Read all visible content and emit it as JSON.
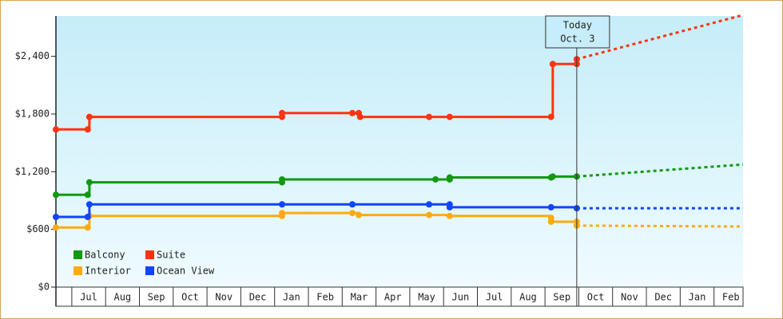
{
  "chart_data": {
    "type": "step-line",
    "annotation": {
      "label": "Today",
      "date": "Oct. 3",
      "x": 15.94
    },
    "xlim": [
      0.53,
      20.86
    ],
    "xticks": [
      {
        "value": 1.5,
        "label": "Jul"
      },
      {
        "value": 2.5,
        "label": "Aug"
      },
      {
        "value": 3.5,
        "label": "Sep"
      },
      {
        "value": 4.5,
        "label": "Oct"
      },
      {
        "value": 5.5,
        "label": "Nov"
      },
      {
        "value": 6.5,
        "label": "Dec"
      },
      {
        "value": 7.5,
        "label": "Jan"
      },
      {
        "value": 8.5,
        "label": "Feb"
      },
      {
        "value": 9.5,
        "label": "Mar"
      },
      {
        "value": 10.5,
        "label": "Apr"
      },
      {
        "value": 11.5,
        "label": "May"
      },
      {
        "value": 12.5,
        "label": "Jun"
      },
      {
        "value": 13.5,
        "label": "Jul"
      },
      {
        "value": 14.5,
        "label": "Aug"
      },
      {
        "value": 15.5,
        "label": "Sep"
      },
      {
        "value": 16.5,
        "label": "Oct"
      },
      {
        "value": 17.5,
        "label": "Nov"
      },
      {
        "value": 18.5,
        "label": "Dec"
      },
      {
        "value": 19.5,
        "label": "Jan"
      },
      {
        "value": 20.5,
        "label": "Feb"
      }
    ],
    "ylim": [
      0,
      2820
    ],
    "yticks": [
      {
        "value": 0,
        "label": "$0"
      },
      {
        "value": 600,
        "label": "$600"
      },
      {
        "value": 1200,
        "label": "$1,200"
      },
      {
        "value": 1800,
        "label": "$1,800"
      },
      {
        "value": 2400,
        "label": "$2,400"
      }
    ],
    "legend": "bottom-left",
    "series": [
      {
        "name": "Balcony",
        "color": "#119911",
        "x": [
          0.53,
          1.47,
          1.52,
          7.22,
          7.22,
          11.76,
          12.18,
          12.18,
          15.18,
          15.23,
          15.94
        ],
        "values": [
          960,
          960,
          1090,
          1090,
          1120,
          1120,
          1120,
          1140,
          1140,
          1150,
          1150
        ],
        "forecast_x": [
          20.86
        ],
        "forecast_values": [
          1275
        ]
      },
      {
        "name": "Suite",
        "color": "#ff3311",
        "x": [
          0.53,
          1.47,
          1.52,
          7.22,
          7.22,
          9.3,
          9.49,
          9.53,
          11.57,
          12.18,
          15.18,
          15.23,
          15.94,
          15.94
        ],
        "values": [
          1640,
          1640,
          1770,
          1770,
          1810,
          1810,
          1810,
          1770,
          1770,
          1770,
          1770,
          2320,
          2320,
          2370
        ],
        "forecast_x": [
          20.86
        ],
        "forecast_values": [
          2830
        ]
      },
      {
        "name": "Interior",
        "color": "#ffaa11",
        "x": [
          0.53,
          1.47,
          1.52,
          7.22,
          7.22,
          9.3,
          9.49,
          11.57,
          12.18,
          15.18,
          15.18,
          15.94,
          15.94
        ],
        "values": [
          620,
          620,
          740,
          740,
          770,
          770,
          750,
          750,
          740,
          720,
          680,
          680,
          640
        ],
        "forecast_x": [
          20.86
        ],
        "forecast_values": [
          630
        ]
      },
      {
        "name": "Ocean View",
        "color": "#1144ff",
        "x": [
          0.53,
          1.47,
          1.52,
          7.22,
          9.3,
          11.57,
          12.18,
          12.18,
          15.18,
          15.94
        ],
        "values": [
          730,
          730,
          860,
          860,
          860,
          860,
          860,
          830,
          830,
          820
        ],
        "forecast_x": [
          20.86
        ],
        "forecast_values": [
          820
        ]
      }
    ]
  }
}
